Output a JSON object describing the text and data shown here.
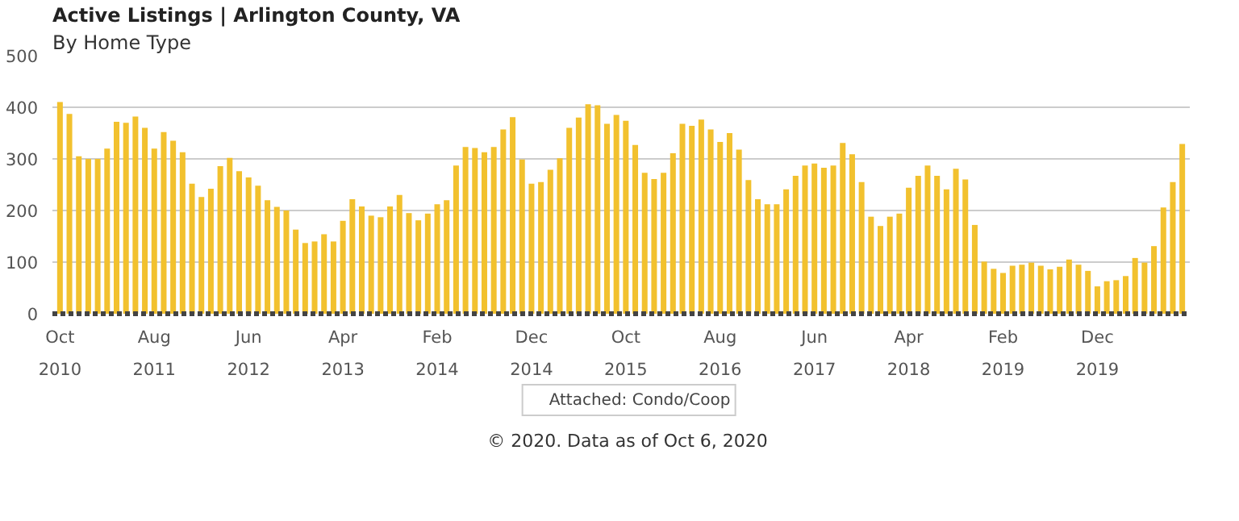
{
  "chart_data": {
    "type": "bar",
    "title": "Active Listings | Arlington County, VA",
    "subtitle": "By Home Type",
    "categories": [
      "Oct 2010",
      null,
      null,
      null,
      null,
      null,
      null,
      null,
      null,
      null,
      "Aug 2011",
      null,
      null,
      null,
      null,
      null,
      null,
      null,
      null,
      null,
      "Jun 2012",
      null,
      null,
      null,
      null,
      null,
      null,
      null,
      null,
      null,
      "Apr 2013",
      null,
      null,
      null,
      null,
      null,
      null,
      null,
      null,
      null,
      "Feb 2014",
      null,
      null,
      null,
      null,
      null,
      null,
      null,
      null,
      null,
      "Dec 2014",
      null,
      null,
      null,
      null,
      null,
      null,
      null,
      null,
      null,
      "Oct 2015",
      null,
      null,
      null,
      null,
      null,
      null,
      null,
      null,
      null,
      "Aug 2016",
      null,
      null,
      null,
      null,
      null,
      null,
      null,
      null,
      null,
      "Jun 2017",
      null,
      null,
      null,
      null,
      null,
      null,
      null,
      null,
      null,
      "Apr 2018",
      null,
      null,
      null,
      null,
      null,
      null,
      null,
      null,
      null,
      "Feb 2019",
      null,
      null,
      null,
      null,
      null,
      null,
      null,
      null,
      null,
      "Dec 2019",
      null,
      null,
      null,
      null,
      null,
      null,
      null,
      null,
      null
    ],
    "series": [
      {
        "name": "Attached: Condo/Coop",
        "color": "#f2c12e",
        "values": [
          410,
          387,
          305,
          300,
          300,
          320,
          372,
          370,
          382,
          360,
          320,
          352,
          335,
          313,
          252,
          226,
          242,
          286,
          302,
          276,
          264,
          248,
          220,
          207,
          200,
          163,
          137,
          140,
          154,
          140,
          180,
          222,
          208,
          190,
          187,
          208,
          230,
          195,
          181,
          194,
          212,
          220,
          287,
          323,
          321,
          313,
          323,
          357,
          381,
          299,
          252,
          255,
          279,
          301,
          360,
          380,
          406,
          404,
          368,
          385,
          374,
          327,
          273,
          261,
          273,
          311,
          368,
          364,
          376,
          357,
          333,
          350,
          318,
          259,
          222,
          212,
          212,
          241,
          267,
          287,
          291,
          283,
          287,
          331,
          309,
          255,
          188,
          170,
          188,
          194,
          244,
          267,
          287,
          267,
          241,
          281,
          260,
          172,
          101,
          87,
          79,
          93,
          95,
          99,
          93,
          86,
          91,
          105,
          95,
          83,
          53,
          63,
          65,
          73,
          108,
          99,
          131,
          206,
          255,
          329
        ]
      }
    ],
    "ylim": [
      0,
      500
    ],
    "yticks": [
      0,
      100,
      200,
      300,
      400,
      500
    ],
    "grid": "y",
    "legend": "bottom",
    "annotations": [
      "© 2020. Data as of Oct 6, 2020"
    ]
  }
}
